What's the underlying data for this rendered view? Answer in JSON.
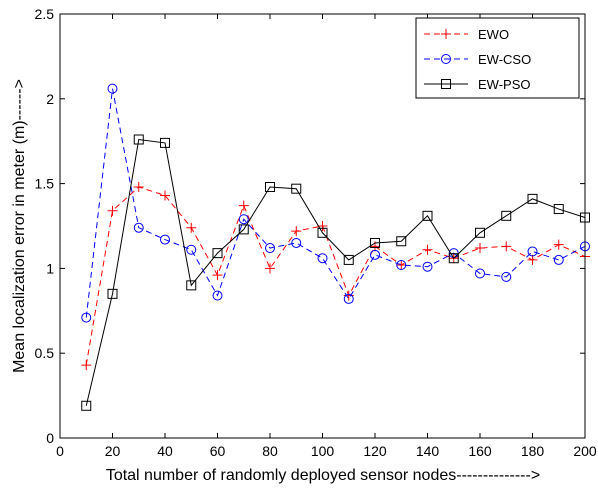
{
  "chart_data": {
    "type": "line",
    "xlabel": "Total number of randomly deployed sensor nodes-------------->",
    "ylabel": "Mean localization error in meter (m)------>",
    "xlim": [
      0,
      200
    ],
    "ylim": [
      0,
      2.5
    ],
    "x_ticks": [
      "0",
      "20",
      "40",
      "60",
      "80",
      "100",
      "120",
      "140",
      "160",
      "180",
      "200"
    ],
    "y_ticks": [
      "0",
      "0.5",
      "1",
      "1.5",
      "2",
      "2.5"
    ],
    "grid": false,
    "legend_position": "top-right",
    "x": [
      10,
      20,
      30,
      40,
      50,
      60,
      70,
      80,
      90,
      100,
      110,
      120,
      130,
      140,
      150,
      160,
      170,
      180,
      190,
      200
    ],
    "series": [
      {
        "name": "EWO",
        "color": "#ff0000",
        "line_style": "dashed",
        "marker": "plus",
        "values": [
          0.43,
          1.34,
          1.48,
          1.43,
          1.24,
          0.96,
          1.37,
          1.0,
          1.22,
          1.25,
          0.84,
          1.13,
          1.02,
          1.11,
          1.06,
          1.12,
          1.13,
          1.05,
          1.14,
          1.07
        ]
      },
      {
        "name": "EW-CSO",
        "color": "#0000ff",
        "line_style": "dashed",
        "marker": "circle",
        "values": [
          0.71,
          2.06,
          1.24,
          1.17,
          1.11,
          0.84,
          1.29,
          1.12,
          1.15,
          1.06,
          0.82,
          1.08,
          1.02,
          1.01,
          1.09,
          0.97,
          0.95,
          1.1,
          1.05,
          1.13
        ]
      },
      {
        "name": "EW-PSO",
        "color": "#000000",
        "line_style": "solid",
        "marker": "square",
        "values": [
          0.19,
          0.85,
          1.76,
          1.74,
          0.9,
          1.09,
          1.23,
          1.48,
          1.47,
          1.21,
          1.05,
          1.15,
          1.16,
          1.31,
          1.06,
          1.21,
          1.31,
          1.41,
          1.35,
          1.3
        ]
      }
    ]
  }
}
